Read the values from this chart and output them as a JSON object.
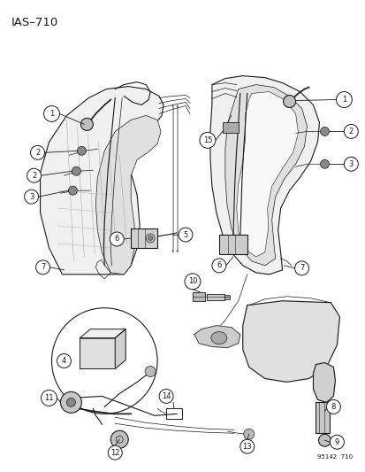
{
  "title": "IAS–710",
  "watermark": "95142  710",
  "background_color": "#ffffff",
  "line_color": "#1a1a1a",
  "fig_width": 4.14,
  "fig_height": 5.33,
  "dpi": 100,
  "title_fontsize": 9.5,
  "label_fontsize": 6.0,
  "watermark_fontsize": 5.0
}
